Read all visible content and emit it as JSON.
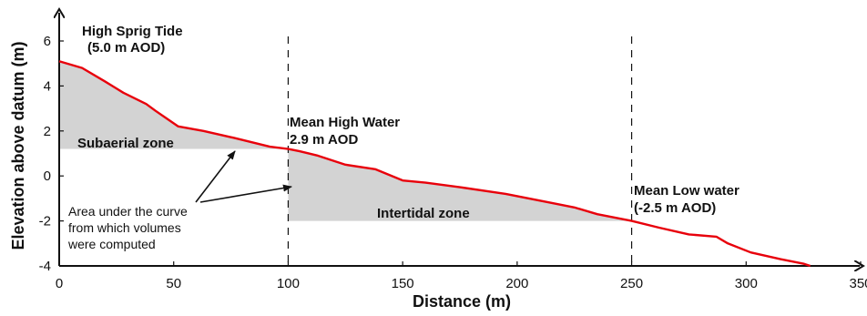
{
  "chart_data": {
    "type": "area",
    "xlabel": "Distance (m)",
    "ylabel": "Elevation above datum (m)",
    "xlim": [
      0,
      350
    ],
    "ylim": [
      -4,
      6
    ],
    "xticks": [
      "0",
      "50",
      "100",
      "150",
      "200",
      "250",
      "300",
      "350"
    ],
    "yticks": [
      "-4",
      "-2",
      "0",
      "2",
      "4",
      "6"
    ],
    "line_color": "#e8000b",
    "fill_color": "#d3d3d3",
    "profile": {
      "x": [
        0,
        10,
        20,
        28,
        38,
        42,
        52,
        63,
        76,
        92,
        100,
        105,
        113,
        125,
        138,
        150,
        160,
        175,
        195,
        215,
        225,
        235,
        250,
        262,
        275,
        287,
        292,
        302,
        315,
        325,
        328
      ],
      "y": [
        5.1,
        4.8,
        4.2,
        3.7,
        3.2,
        2.9,
        2.2,
        2.0,
        1.7,
        1.3,
        1.2,
        1.1,
        0.9,
        0.5,
        0.3,
        -0.2,
        -0.3,
        -0.5,
        -0.8,
        -1.2,
        -1.4,
        -1.7,
        -2.0,
        -2.3,
        -2.6,
        -2.7,
        -3.0,
        -3.4,
        -3.7,
        -3.9,
        -4.0
      ]
    },
    "reference_lines_x": [
      100,
      250
    ],
    "annotations": {
      "high_spring_tide_l1": "High Sprig Tide",
      "high_spring_tide_l2": "(5.0 m AOD)",
      "subaerial_zone": "Subaerial zone",
      "mean_high_water_l1": "Mean High Water",
      "mean_high_water_l2": "2.9 m AOD",
      "intertidal_zone": "Intertidal zone",
      "mean_low_water_l1": "Mean Low water",
      "mean_low_water_l2": "(-2.5 m AOD)",
      "area_note_l1": "Area under the curve",
      "area_note_l2": "from which volumes",
      "area_note_l3": "were computed"
    }
  }
}
